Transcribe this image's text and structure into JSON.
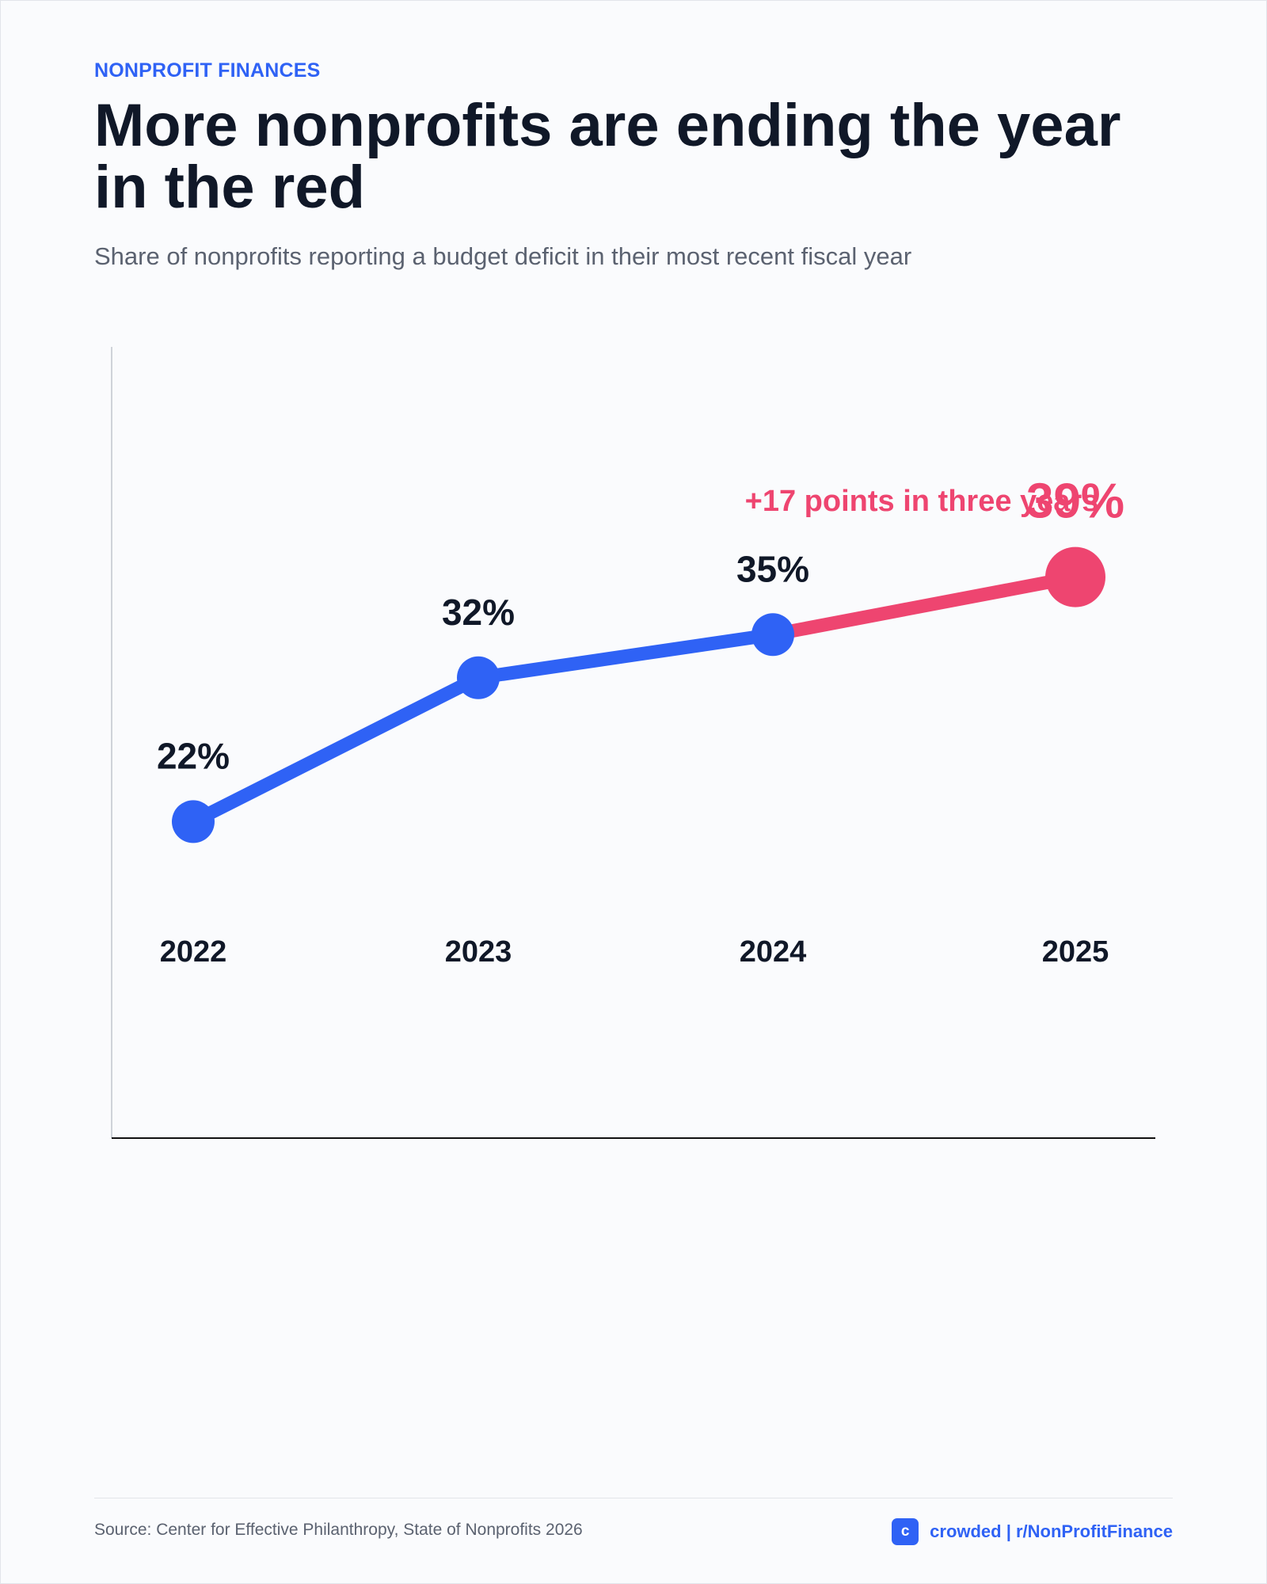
{
  "header": {
    "kicker": "NONPROFIT FINANCES",
    "title": "More nonprofits are ending the year in the red",
    "subtitle": "Share of nonprofits reporting a budget deficit in their most recent fiscal year"
  },
  "chart_data": {
    "type": "line",
    "title": "More nonprofits are ending the year in the red",
    "subtitle": "Share of nonprofits reporting a budget deficit in their most recent fiscal year",
    "xlabel": "",
    "ylabel": "",
    "categories": [
      "2022",
      "2023",
      "2024",
      "2025"
    ],
    "series": [
      {
        "values": [
          22,
          32,
          35,
          39
        ],
        "labels": [
          "22%",
          "32%",
          "35%",
          "39%"
        ]
      }
    ],
    "ylim": [
      0,
      55
    ],
    "grid": false,
    "annotation": "+17 points in three years",
    "colors": {
      "line": "#2f62f5",
      "highlight": "#ee4570",
      "label": "#101828"
    }
  },
  "footer": {
    "source": "Source: Center for Effective Philanthropy, State of Nonprofits 2026",
    "brand_logo": "c",
    "brand_text": "crowded | r/NonProfitFinance"
  }
}
